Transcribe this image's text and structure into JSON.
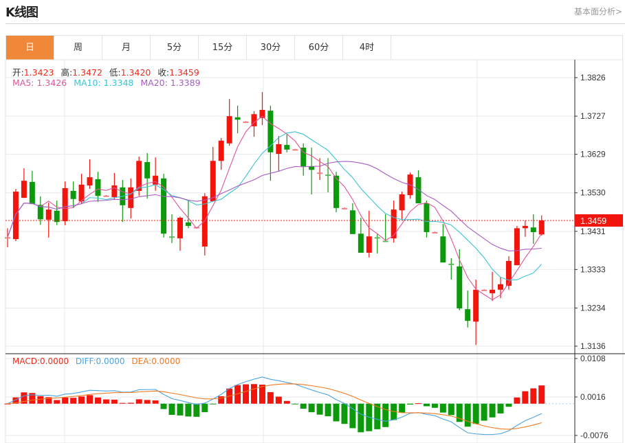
{
  "header": {
    "title": "K线图",
    "link": "基本面分析>"
  },
  "tabs": [
    {
      "label": "日",
      "active": true
    },
    {
      "label": "周"
    },
    {
      "label": "月"
    },
    {
      "label": "5分"
    },
    {
      "label": "15分"
    },
    {
      "label": "30分"
    },
    {
      "label": "60分"
    },
    {
      "label": "4时"
    }
  ],
  "info": {
    "open_label": "开:",
    "open": "1.3423",
    "high_label": "高:",
    "high": "1.3472",
    "low_label": "低:",
    "low": "1.3420",
    "close_label": "收:",
    "close": "1.3459",
    "ma5": "MA5: 1.3426",
    "ma10": "MA10: 1.3348",
    "ma20": "MA20: 1.3389",
    "macd": "MACD:0.0000",
    "diff": "DIFF:0.0000",
    "dea": "DEA:0.0000"
  },
  "colors": {
    "up": "#f2150e",
    "down": "#0c9a0c",
    "ma5": "#e0559a",
    "ma10": "#3cc3d4",
    "ma20": "#a959c4",
    "diff": "#4aa3e0",
    "dea": "#f07a22",
    "accent": "#f0883a"
  },
  "chart_data": {
    "type": "candlestick",
    "price_ticks": [
      "1.3826",
      "1.3727",
      "1.3629",
      "1.3530",
      "1.3431",
      "1.3333",
      "1.3234",
      "1.3136"
    ],
    "ylim": [
      1.3136,
      1.3826
    ],
    "last_price": "1.3459",
    "macd_ticks": [
      "0.0108",
      "0.0016",
      "-0.0076"
    ],
    "macd_ylim": [
      -0.0076,
      0.0108
    ],
    "ma_periods": [
      5,
      10,
      20
    ],
    "grid": true,
    "ohlc": [
      [
        1.3415,
        1.3439,
        1.339,
        1.3416
      ],
      [
        1.3411,
        1.354,
        1.3406,
        1.3533
      ],
      [
        1.3517,
        1.3593,
        1.3517,
        1.3561
      ],
      [
        1.3558,
        1.3586,
        1.3501,
        1.3501
      ],
      [
        1.3499,
        1.3521,
        1.3448,
        1.3462
      ],
      [
        1.3461,
        1.3505,
        1.3415,
        1.3487
      ],
      [
        1.3484,
        1.351,
        1.3447,
        1.3455
      ],
      [
        1.3457,
        1.3559,
        1.3447,
        1.3542
      ],
      [
        1.3535,
        1.3559,
        1.3491,
        1.3514
      ],
      [
        1.3508,
        1.3579,
        1.3501,
        1.3551
      ],
      [
        1.3549,
        1.3616,
        1.354,
        1.357
      ],
      [
        1.3565,
        1.3584,
        1.3507,
        1.3522
      ],
      [
        1.3522,
        1.3524,
        1.3521,
        1.3523
      ],
      [
        1.3519,
        1.3581,
        1.3512,
        1.3549
      ],
      [
        1.3544,
        1.3563,
        1.3455,
        1.3498
      ],
      [
        1.3491,
        1.3567,
        1.3464,
        1.3544
      ],
      [
        1.3535,
        1.3623,
        1.3522,
        1.3612
      ],
      [
        1.3609,
        1.3632,
        1.3515,
        1.3567
      ],
      [
        1.3551,
        1.3621,
        1.3535,
        1.3574
      ],
      [
        1.3567,
        1.3579,
        1.3415,
        1.3425
      ],
      [
        1.3418,
        1.3475,
        1.3401,
        1.3417
      ],
      [
        1.3413,
        1.3469,
        1.3381,
        1.3466
      ],
      [
        1.3454,
        1.351,
        1.3439,
        1.3445
      ],
      [
        1.3441,
        1.3442,
        1.344,
        1.3442
      ],
      [
        1.3392,
        1.3529,
        1.3369,
        1.3521
      ],
      [
        1.3508,
        1.3648,
        1.3508,
        1.3612
      ],
      [
        1.3612,
        1.3671,
        1.3589,
        1.3664
      ],
      [
        1.3657,
        1.3771,
        1.3651,
        1.3727
      ],
      [
        1.3724,
        1.3754,
        1.3683,
        1.3718
      ],
      [
        1.3713,
        1.3714,
        1.3712,
        1.3713
      ],
      [
        1.3701,
        1.374,
        1.3674,
        1.3732
      ],
      [
        1.3722,
        1.3789,
        1.3704,
        1.3743
      ],
      [
        1.3741,
        1.3754,
        1.3561,
        1.3634
      ],
      [
        1.363,
        1.3676,
        1.3586,
        1.3655
      ],
      [
        1.3653,
        1.368,
        1.3634,
        1.3641
      ],
      [
        1.3642,
        1.3643,
        1.3641,
        1.3642
      ],
      [
        1.3646,
        1.3657,
        1.3574,
        1.3598
      ],
      [
        1.3598,
        1.3646,
        1.3526,
        1.3589
      ],
      [
        1.3581,
        1.3619,
        1.3563,
        1.3582
      ],
      [
        1.3577,
        1.3619,
        1.3531,
        1.3576
      ],
      [
        1.3574,
        1.3584,
        1.348,
        1.3491
      ],
      [
        1.3491,
        1.3492,
        1.349,
        1.3491
      ],
      [
        1.3485,
        1.3503,
        1.3424,
        1.3424
      ],
      [
        1.3425,
        1.3466,
        1.3376,
        1.3376
      ],
      [
        1.3376,
        1.3484,
        1.3364,
        1.3418
      ],
      [
        1.3416,
        1.3424,
        1.3374,
        1.3415
      ],
      [
        1.3407,
        1.3475,
        1.3406,
        1.3406
      ],
      [
        1.3413,
        1.351,
        1.3402,
        1.3487
      ],
      [
        1.3485,
        1.3533,
        1.3462,
        1.3526
      ],
      [
        1.3524,
        1.3582,
        1.3515,
        1.3577
      ],
      [
        1.357,
        1.3588,
        1.3503,
        1.3503
      ],
      [
        1.3503,
        1.351,
        1.3415,
        1.3429
      ],
      [
        1.3429,
        1.343,
        1.3428,
        1.3429
      ],
      [
        1.3418,
        1.345,
        1.3351,
        1.3351
      ],
      [
        1.3348,
        1.3362,
        1.3307,
        1.3347
      ],
      [
        1.3341,
        1.3385,
        1.3228,
        1.3233
      ],
      [
        1.3231,
        1.3279,
        1.3184,
        1.3201
      ],
      [
        1.3199,
        1.3307,
        1.3139,
        1.3281
      ],
      [
        1.3281,
        1.3282,
        1.328,
        1.3281
      ],
      [
        1.3272,
        1.3327,
        1.3252,
        1.3281
      ],
      [
        1.3281,
        1.3314,
        1.3259,
        1.3295
      ],
      [
        1.3291,
        1.3367,
        1.3281,
        1.3355
      ],
      [
        1.3344,
        1.3445,
        1.3344,
        1.3439
      ],
      [
        1.3439,
        1.3459,
        1.3417,
        1.3445
      ],
      [
        1.3441,
        1.3475,
        1.3399,
        1.3429
      ],
      [
        1.3423,
        1.3472,
        1.342,
        1.3459
      ]
    ]
  }
}
